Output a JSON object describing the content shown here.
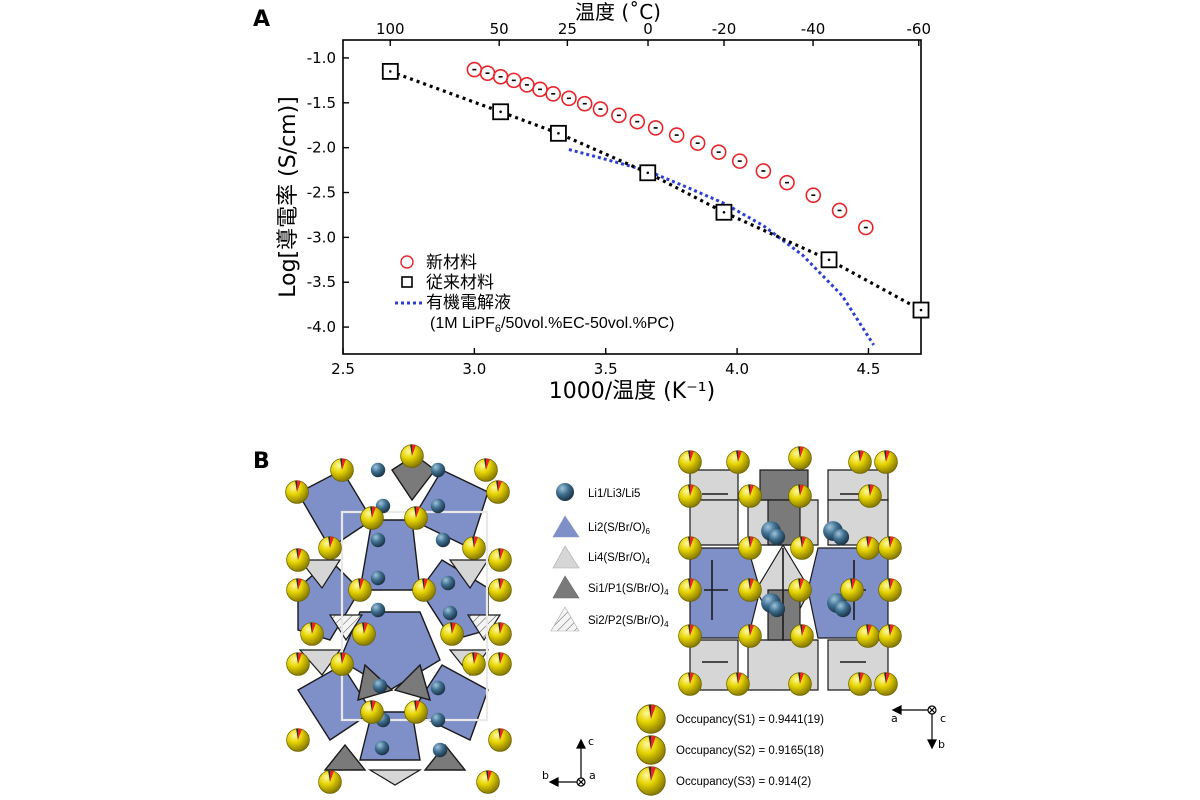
{
  "panel_a_label": "A",
  "panel_b_label": "B",
  "chart_data": {
    "type": "scatter",
    "title": "",
    "xlabel": "1000/温度 (K⁻¹)",
    "ylabel": "Log[導電率 (S/cm)]",
    "top_axis_label": "温度 (˚C)",
    "xlim": [
      2.5,
      4.7
    ],
    "ylim": [
      -4.3,
      -0.8
    ],
    "x_ticks": [
      "2.5",
      "3.0",
      "3.5",
      "4.0",
      "4.5"
    ],
    "x_tick_values": [
      2.5,
      3.0,
      3.5,
      4.0,
      4.5
    ],
    "y_ticks": [
      "-1.0",
      "-1.5",
      "-2.0",
      "-2.5",
      "-3.0",
      "-3.5",
      "-4.0"
    ],
    "y_tick_values": [
      -1.0,
      -1.5,
      -2.0,
      -2.5,
      -3.0,
      -3.5,
      -4.0
    ],
    "top_ticks": [
      "100",
      "50",
      "25",
      "0",
      "-20",
      "-40",
      "-60"
    ],
    "top_tick_celsius": [
      100,
      50,
      25,
      0,
      -20,
      -40,
      -60
    ],
    "legend_position": "lower-left",
    "series": [
      {
        "name": "新材料",
        "marker": "open-circle",
        "color": "#e8242a",
        "x": [
          3.0,
          3.05,
          3.1,
          3.15,
          3.2,
          3.25,
          3.3,
          3.36,
          3.42,
          3.48,
          3.55,
          3.62,
          3.69,
          3.77,
          3.85,
          3.93,
          4.01,
          4.1,
          4.19,
          4.29,
          4.39,
          4.49
        ],
        "y": [
          -1.13,
          -1.17,
          -1.21,
          -1.25,
          -1.3,
          -1.35,
          -1.4,
          -1.45,
          -1.51,
          -1.57,
          -1.64,
          -1.71,
          -1.78,
          -1.86,
          -1.95,
          -2.05,
          -2.15,
          -2.26,
          -2.39,
          -2.53,
          -2.7,
          -2.89
        ]
      },
      {
        "name": "従来材料",
        "marker": "open-square",
        "color": "#000000",
        "line": "dotted",
        "x": [
          2.68,
          3.1,
          3.32,
          3.66,
          3.95,
          4.35,
          4.7
        ],
        "y": [
          -1.15,
          -1.6,
          -1.84,
          -2.28,
          -2.72,
          -3.25,
          -3.81
        ]
      },
      {
        "name": "有機電解液",
        "sublabel": "(1M LiPF",
        "sublabel_sub": "6",
        "sublabel_tail": "/50vol.%EC-50vol.%PC)",
        "marker": "none",
        "color": "#2b3fd6",
        "line": "dotted",
        "x": [
          3.36,
          3.5,
          3.66,
          3.8,
          3.95,
          4.1,
          4.25,
          4.4,
          4.52
        ],
        "y": [
          -2.02,
          -2.13,
          -2.26,
          -2.43,
          -2.62,
          -2.87,
          -3.2,
          -3.65,
          -4.2
        ]
      }
    ]
  },
  "structure_legend": [
    {
      "label": "Li1/Li3/Li5",
      "sub": "",
      "tail": "",
      "kind": "sphere",
      "color": "#3f6f8f"
    },
    {
      "label": "Li2(S/Br/O)",
      "sub": "6",
      "tail": "",
      "kind": "poly",
      "color": "#7f8fc8"
    },
    {
      "label": "Li4(S/Br/O)",
      "sub": "4",
      "tail": "",
      "kind": "poly",
      "color": "#d6d6d6"
    },
    {
      "label": "Si1/P1(S/Br/O)",
      "sub": "4",
      "tail": "",
      "kind": "poly",
      "color": "#7a7a7a"
    },
    {
      "label": "Si2/P2(S/Br/O)",
      "sub": "4",
      "tail": "",
      "kind": "hatched",
      "color": "#ececec"
    }
  ],
  "occupancy": [
    {
      "label": "Occupancy(S1) = 0.9441(19)"
    },
    {
      "label": "Occupancy(S2) = 0.9165(18)"
    },
    {
      "label": "Occupancy(S3) = 0.914(2)"
    }
  ],
  "axes_left": {
    "up": "c",
    "left": "b",
    "center": "a"
  },
  "axes_right": {
    "left": "a",
    "right": "c",
    "down": "b"
  },
  "colors": {
    "sulfur_yellow": "#e6d400",
    "red_slice": "#e8242a",
    "li_sphere": "#3f6f8f",
    "li2_poly": "#7f8fc8",
    "li4_poly": "#d6d6d6",
    "si1_poly": "#7a7a7a"
  }
}
